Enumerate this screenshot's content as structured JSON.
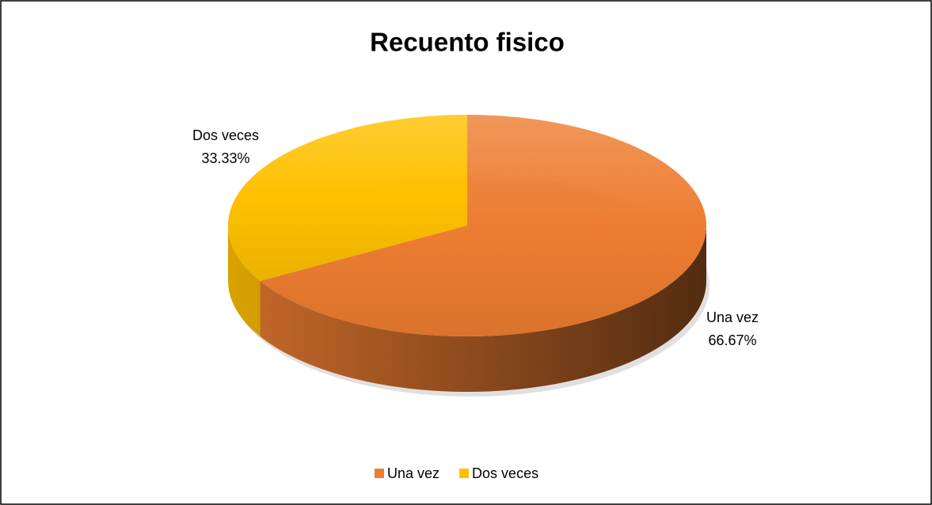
{
  "chart_data": {
    "type": "pie",
    "title": "Recuento fisico",
    "categories": [
      "Una vez",
      "Dos veces"
    ],
    "values": [
      66.67,
      33.33
    ],
    "value_labels": [
      "66.67%",
      "33.33%"
    ],
    "colors": [
      "#ED7D31",
      "#FFC000"
    ],
    "legend": "bottom"
  }
}
